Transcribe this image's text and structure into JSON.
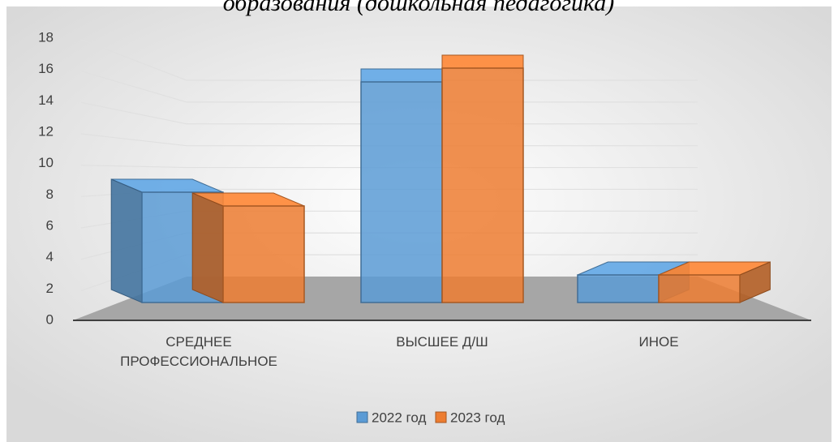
{
  "chart_data": {
    "type": "bar3d",
    "title": "образования (дошкольная педагогика)",
    "categories": [
      "СРЕДНЕЕ ПРОФЕССИОНАЛЬНОЕ",
      "ВЫСШЕЕ Д/Ш",
      "ИНОЕ"
    ],
    "series": [
      {
        "name": "2022 год",
        "color": "#5b9bd5",
        "values": [
          8,
          16,
          2
        ]
      },
      {
        "name": "2023 год",
        "color": "#ed7d31",
        "values": [
          7,
          17,
          2
        ]
      }
    ],
    "ylim": [
      0,
      18
    ],
    "yticks": [
      0,
      2,
      4,
      6,
      8,
      10,
      12,
      14,
      16,
      18
    ],
    "grid": true,
    "legend": "bottom"
  }
}
